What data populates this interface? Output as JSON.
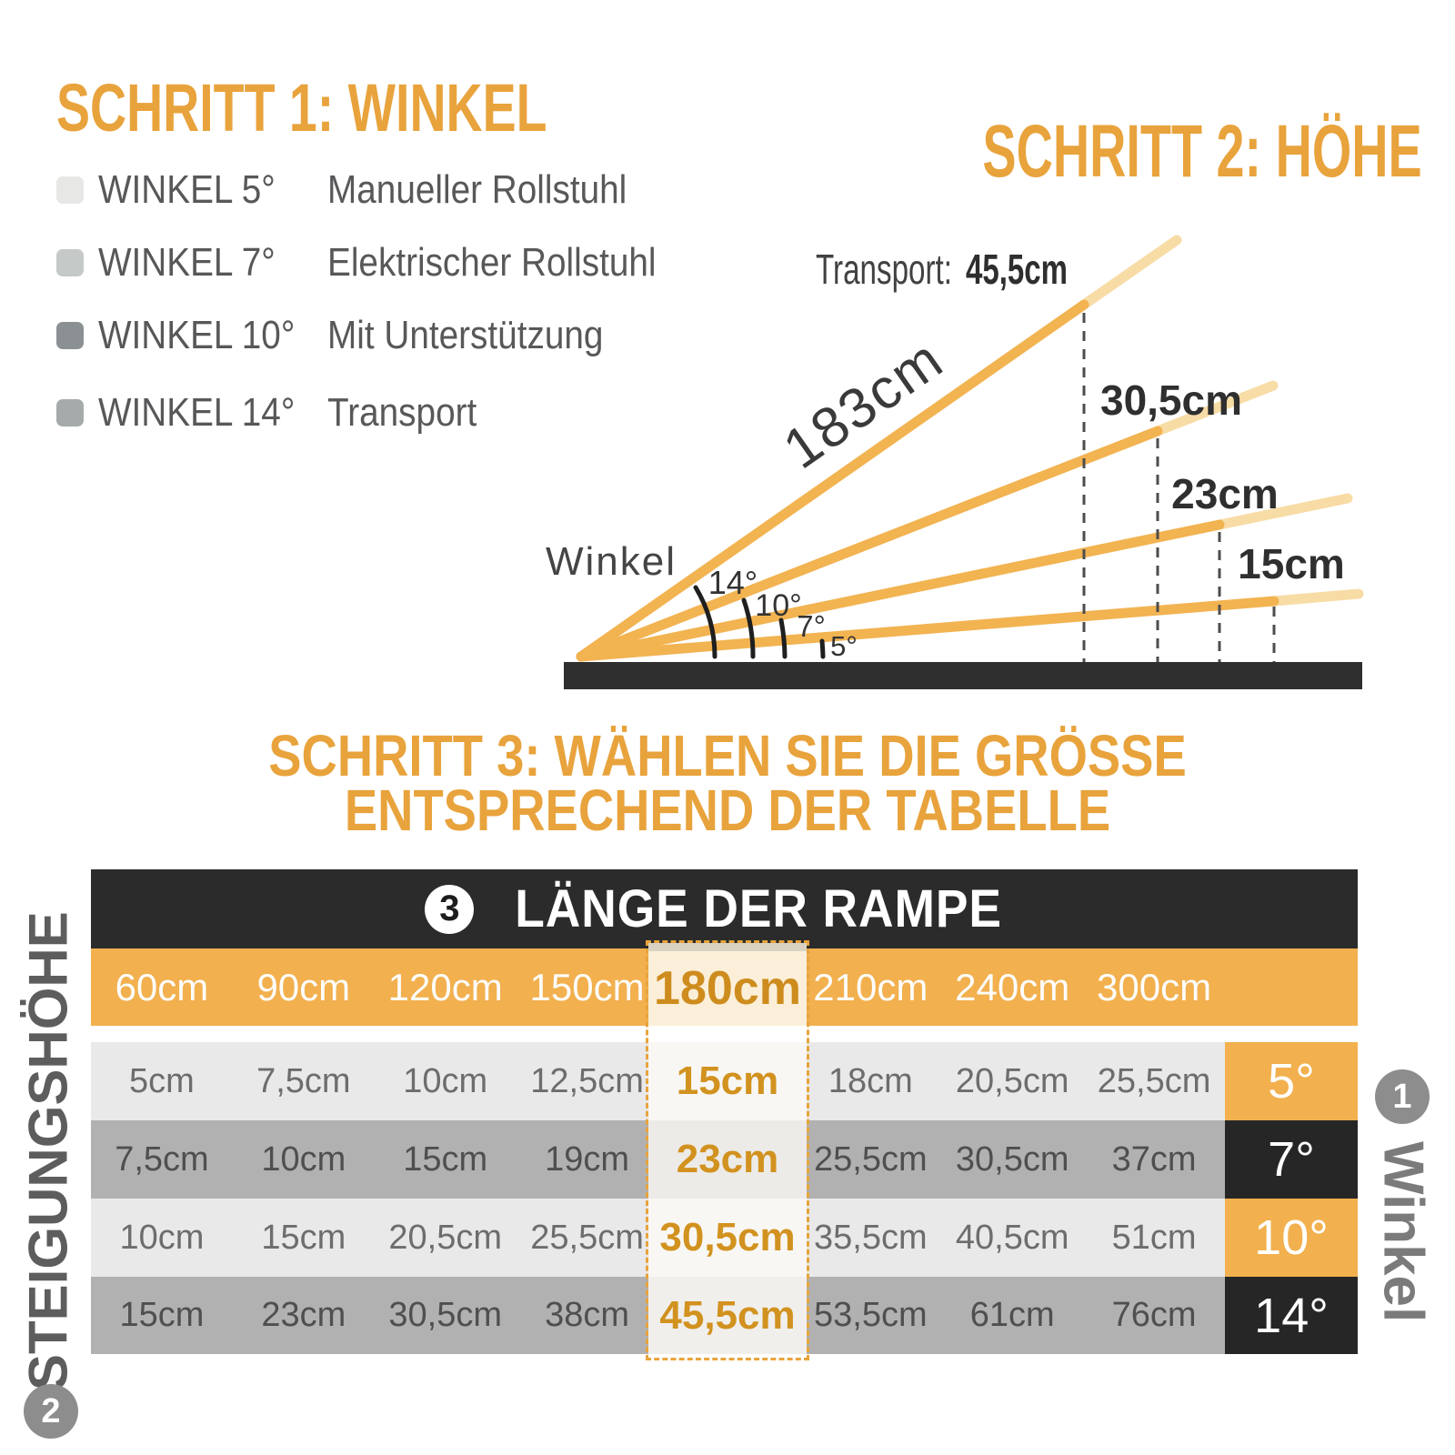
{
  "colors": {
    "accent_orange": "#E8A33C",
    "table_orange": "#F2B04E",
    "ramp_orange": "#F2B351",
    "ramp_light": "#F8DCA6",
    "dark_bar": "#2B2B2B",
    "ground": "#2F2F2F",
    "row_light": "#E9E9E9",
    "row_dark": "#B1B1B1",
    "angle_cell_dark": "#262626",
    "highlight_text": "#CE8C1E",
    "badge_gray": "#8D8D8D"
  },
  "step1": {
    "title": "SCHRITT 1: WINKEL",
    "items": [
      {
        "label": "WINKEL 5°",
        "desc": "Manueller Rollstuhl",
        "swatch": "#E7E8E6"
      },
      {
        "label": "WINKEL 7°",
        "desc": "Elektrischer Rollstuhl",
        "swatch": "#C5C9C7"
      },
      {
        "label": "WINKEL 10°",
        "desc": "Mit Unterstützung",
        "swatch": "#8B9192"
      },
      {
        "label": "WINKEL 14°",
        "desc": "Transport",
        "swatch": "#A5ABAA"
      }
    ]
  },
  "step2": {
    "title": "SCHRITT 2: HÖHE",
    "transport_label": "Transport:",
    "transport_value": "45,5cm",
    "ramp_length_label": "183cm",
    "angle_axis_label": "Winkel",
    "angle_labels": [
      "14°",
      "10°",
      "7°",
      "5°"
    ],
    "height_labels": [
      "30,5cm",
      "23cm",
      "15cm"
    ]
  },
  "step3": {
    "title_line1": "SCHRITT 3: WÄHLEN SIE DIE GRÖSSE",
    "title_line2": "ENTSPRECHEND DER TABELLE",
    "table": {
      "header_badge": "3",
      "header_title": "LÄNGE DER RAMPE",
      "columns": [
        "60cm",
        "90cm",
        "120cm",
        "150cm",
        "180cm",
        "210cm",
        "240cm",
        "300cm"
      ],
      "highlight_index": 4,
      "rows": [
        {
          "values": [
            "5cm",
            "7,5cm",
            "10cm",
            "12,5cm",
            "15cm",
            "18cm",
            "20,5cm",
            "25,5cm"
          ],
          "angle": "5°",
          "angle_color": "orange"
        },
        {
          "values": [
            "7,5cm",
            "10cm",
            "15cm",
            "19cm",
            "23cm",
            "25,5cm",
            "30,5cm",
            "37cm"
          ],
          "angle": "7°",
          "angle_color": "dark"
        },
        {
          "values": [
            "10cm",
            "15cm",
            "20,5cm",
            "25,5cm",
            "30,5cm",
            "35,5cm",
            "40,5cm",
            "51cm"
          ],
          "angle": "10°",
          "angle_color": "orange"
        },
        {
          "values": [
            "15cm",
            "23cm",
            "30,5cm",
            "38cm",
            "45,5cm",
            "53,5cm",
            "61cm",
            "76cm"
          ],
          "angle": "14°",
          "angle_color": "dark"
        }
      ],
      "left_axis_label": "STEIGUNGSHÖHE",
      "left_axis_badge": "2",
      "right_axis_label": "Winkel",
      "right_axis_badge": "1"
    }
  }
}
